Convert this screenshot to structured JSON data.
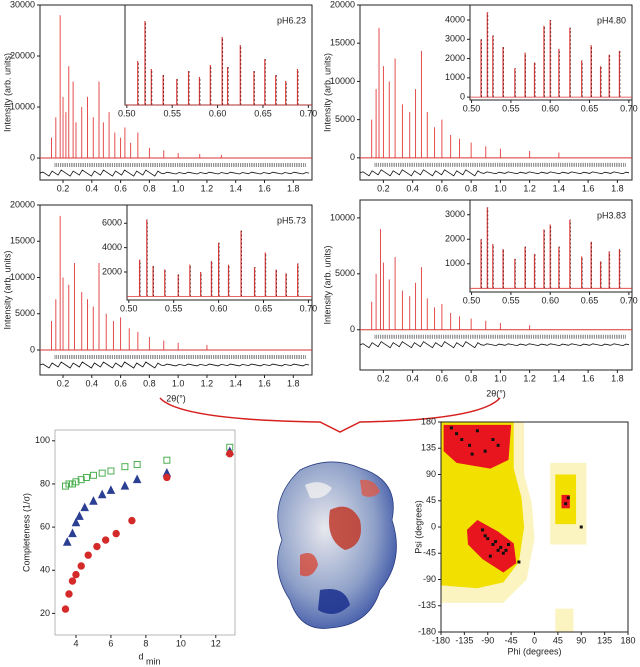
{
  "chart_data": [
    {
      "type": "diffraction",
      "label": "pH6.23",
      "ylabel": "Intensity (arb. units)",
      "xlim": [
        0.04,
        1.93
      ],
      "ylim": [
        -4300,
        30000
      ],
      "xticks": [
        0.2,
        0.4,
        0.6,
        0.8,
        {
          "value": 1,
          "label": "1.0"
        },
        1.2,
        1.4,
        1.6,
        1.8
      ],
      "yticks": [
        0,
        10000,
        20000,
        30000
      ],
      "x": [
        0.12,
        0.15,
        0.18,
        0.2,
        0.22,
        0.24,
        0.27,
        0.29,
        0.33,
        0.37,
        0.41,
        0.45,
        0.48,
        0.52,
        0.56,
        0.6,
        0.63,
        0.67,
        0.72,
        0.8,
        0.9,
        1.0,
        1.15,
        1.3
      ],
      "values": [
        4000,
        8000,
        28000,
        12000,
        9000,
        18000,
        15000,
        7000,
        10000,
        12000,
        8000,
        15000,
        7000,
        9000,
        5000,
        4000,
        6000,
        3000,
        5000,
        2000,
        1500,
        1000,
        800,
        600
      ],
      "inset": {
        "xlim": [
          0.498,
          0.704
        ],
        "ylim": [
          0,
          5000
        ],
        "xticks": [
          {
            "value": 0.5,
            "label": "0.50"
          },
          0.55,
          {
            "value": 0.6,
            "label": "0.60"
          },
          0.65,
          {
            "value": 0.7,
            "label": "0.70"
          }
        ],
        "yticks": [],
        "x": [
          0.512,
          0.52,
          0.527,
          0.54,
          0.555,
          0.568,
          0.58,
          0.592,
          0.605,
          0.611,
          0.625,
          0.64,
          0.652,
          0.664,
          0.675,
          0.688
        ],
        "values": [
          2200,
          4200,
          1800,
          1500,
          1300,
          1700,
          1400,
          2000,
          3400,
          1900,
          3000,
          1700,
          2300,
          1500,
          1200,
          1800
        ]
      }
    },
    {
      "type": "diffraction",
      "label": "pH4.80",
      "ylabel": "Intensity (arb. units)",
      "xlim": [
        0.04,
        1.9
      ],
      "ylim": [
        -2900,
        20000
      ],
      "xticks": [
        0.2,
        0.4,
        0.6,
        0.8,
        {
          "value": 1,
          "label": "1.0"
        },
        1.2,
        1.4,
        1.6,
        1.8
      ],
      "yticks": [
        0,
        5000,
        10000,
        15000,
        20000
      ],
      "x": [
        0.12,
        0.15,
        0.17,
        0.2,
        0.24,
        0.28,
        0.33,
        0.38,
        0.42,
        0.46,
        0.5,
        0.55,
        0.6,
        0.66,
        0.72,
        0.8,
        0.9,
        1.0,
        1.2,
        1.4
      ],
      "values": [
        5000,
        9000,
        17000,
        12000,
        10000,
        13000,
        7000,
        6000,
        9000,
        14000,
        6000,
        4000,
        5000,
        3000,
        2500,
        2000,
        1500,
        1200,
        900,
        700
      ],
      "inset": {
        "xlim": [
          0.498,
          0.704
        ],
        "ylim": [
          -150,
          4780
        ],
        "xticks": [
          {
            "value": 0.5,
            "label": "0.50"
          },
          0.55,
          {
            "value": 0.6,
            "label": "0.60"
          },
          0.65,
          {
            "value": 0.7,
            "label": "0.70"
          }
        ],
        "yticks": [
          0,
          1000,
          2000,
          3000,
          4000
        ],
        "x": [
          0.512,
          0.52,
          0.527,
          0.54,
          0.555,
          0.568,
          0.58,
          0.592,
          0.6,
          0.611,
          0.625,
          0.64,
          0.652,
          0.664,
          0.675,
          0.688
        ],
        "values": [
          3000,
          4400,
          3200,
          2600,
          1500,
          2300,
          1800,
          3700,
          4000,
          2500,
          3600,
          1900,
          2700,
          1600,
          2200,
          2400
        ]
      }
    },
    {
      "type": "diffraction",
      "label": "pH5.73",
      "ylabel": "Intensity (arb. units)",
      "xlabel": "2θ(°)",
      "xlim": [
        0.04,
        1.93
      ],
      "ylim": [
        -3450,
        20000
      ],
      "xticks": [
        0.2,
        0.4,
        0.6,
        0.8,
        {
          "value": 1,
          "label": "1.0"
        },
        1.2,
        1.4,
        1.6,
        1.8
      ],
      "yticks": [
        0,
        5000,
        10000,
        15000,
        20000
      ],
      "x": [
        0.12,
        0.15,
        0.18,
        0.2,
        0.24,
        0.28,
        0.33,
        0.37,
        0.41,
        0.45,
        0.5,
        0.55,
        0.6,
        0.66,
        0.72,
        0.8,
        0.9,
        1.0,
        1.2
      ],
      "values": [
        4000,
        7000,
        18500,
        10000,
        9000,
        12000,
        8000,
        7000,
        6000,
        12000,
        5000,
        4000,
        4500,
        3000,
        2500,
        1800,
        1300,
        1000,
        700
      ],
      "inset": {
        "xlim": [
          0.498,
          0.704
        ],
        "ylim": [
          -300,
          7500
        ],
        "xticks": [
          {
            "value": 0.5,
            "label": "0.50"
          },
          0.55,
          {
            "value": 0.6,
            "label": "0.60"
          },
          0.65,
          {
            "value": 0.7,
            "label": "0.70"
          }
        ],
        "yticks": [
          2000,
          4000,
          6000
        ],
        "x": [
          0.512,
          0.52,
          0.527,
          0.54,
          0.555,
          0.568,
          0.58,
          0.592,
          0.6,
          0.611,
          0.625,
          0.64,
          0.652,
          0.664,
          0.675,
          0.688
        ],
        "values": [
          3000,
          6300,
          2500,
          2200,
          1800,
          2600,
          2000,
          2900,
          4400,
          2600,
          5400,
          2400,
          3600,
          2200,
          1900,
          2700
        ]
      }
    },
    {
      "type": "diffraction",
      "label": "pH3.83",
      "ylabel": "Intensity (arb. units)",
      "xlabel": "2θ(°)",
      "xlim": [
        0.04,
        1.9
      ],
      "ylim": [
        -3600,
        11600
      ],
      "xticks": [
        0.2,
        0.4,
        0.6,
        0.8,
        {
          "value": 1,
          "label": "1.0"
        },
        1.2,
        1.4,
        1.6,
        1.8
      ],
      "yticks": [
        0,
        5000,
        10000
      ],
      "x": [
        0.12,
        0.15,
        0.18,
        0.2,
        0.24,
        0.28,
        0.33,
        0.38,
        0.42,
        0.46,
        0.5,
        0.55,
        0.6,
        0.66,
        0.72,
        0.8,
        0.9,
        1.0,
        1.2
      ],
      "values": [
        2500,
        5000,
        9000,
        6000,
        4500,
        6500,
        3500,
        3000,
        4200,
        5600,
        2800,
        2000,
        2300,
        1500,
        1200,
        1000,
        800,
        600,
        400
      ],
      "inset": {
        "xlim": [
          0.498,
          0.704
        ],
        "ylim": [
          -150,
          3600
        ],
        "xticks": [
          {
            "value": 0.5,
            "label": "0.50"
          },
          0.55,
          {
            "value": 0.6,
            "label": "0.60"
          },
          0.65,
          {
            "value": 0.7,
            "label": "0.70"
          }
        ],
        "yticks": [
          1000,
          2000,
          3000
        ],
        "x": [
          0.512,
          0.52,
          0.527,
          0.54,
          0.555,
          0.568,
          0.58,
          0.592,
          0.6,
          0.611,
          0.625,
          0.64,
          0.652,
          0.664,
          0.675,
          0.688
        ],
        "values": [
          2000,
          3300,
          1800,
          1600,
          1200,
          1700,
          1400,
          2400,
          2600,
          1700,
          2800,
          1300,
          1900,
          1100,
          1500,
          1600
        ]
      }
    },
    {
      "type": "scatter",
      "ylabel": "Completeness (1/σ)",
      "xlabel": {
        "main": "d",
        "sub": "min"
      },
      "xlim": [
        2.8,
        13.1
      ],
      "ylim": [
        10,
        105
      ],
      "xticks": [
        4,
        6,
        8,
        10,
        12
      ],
      "yticks": [
        20,
        40,
        60,
        80,
        100
      ],
      "series": [
        {
          "marker": "square",
          "color": "#4caf50",
          "x": [
            3.4,
            3.6,
            3.8,
            4.0,
            4.3,
            4.6,
            5.0,
            5.5,
            6.0,
            6.8,
            7.5,
            9.2,
            12.8
          ],
          "values": [
            79,
            80,
            80,
            81,
            82,
            83,
            84,
            85,
            86,
            88,
            89,
            91,
            97
          ]
        },
        {
          "marker": "triangle",
          "color": "#2b3f93",
          "x": [
            3.5,
            3.8,
            4.0,
            4.2,
            4.5,
            5.0,
            5.5,
            6.0,
            6.8,
            7.5,
            9.2,
            12.8
          ],
          "values": [
            53,
            57,
            62,
            65,
            69,
            72,
            75,
            77,
            79,
            82,
            85,
            95
          ]
        },
        {
          "marker": "circle",
          "color": "#d42a2a",
          "x": [
            3.4,
            3.6,
            3.8,
            4.0,
            4.3,
            4.7,
            5.2,
            5.7,
            6.3,
            7.2,
            9.2,
            12.8
          ],
          "values": [
            22,
            29,
            35,
            38,
            42,
            47,
            51,
            54,
            57,
            63,
            83,
            94
          ]
        }
      ]
    },
    {
      "type": "ramachandran",
      "xlabel": "Phi (degrees)",
      "ylabel": "Psi (degrees)",
      "xlim": [
        -180,
        180
      ],
      "ylim": [
        -180,
        180
      ],
      "xticks": [
        -180,
        -135,
        -90,
        -45,
        0,
        45,
        90,
        135,
        180
      ],
      "yticks": [
        -180,
        -135,
        -90,
        -45,
        0,
        45,
        90,
        135,
        180
      ],
      "x": [
        -150,
        -140,
        -125,
        -110,
        -95,
        -80,
        -70,
        -120,
        -100,
        -90,
        -80,
        -70,
        -65,
        -60,
        -55,
        -50,
        -75,
        -85,
        -95,
        60,
        65,
        90,
        -160,
        -30
      ],
      "values": [
        160,
        150,
        140,
        165,
        130,
        150,
        140,
        125,
        -5,
        -20,
        -30,
        -40,
        -35,
        -45,
        -40,
        -30,
        -25,
        -50,
        -15,
        40,
        50,
        0,
        170,
        -60
      ]
    }
  ]
}
